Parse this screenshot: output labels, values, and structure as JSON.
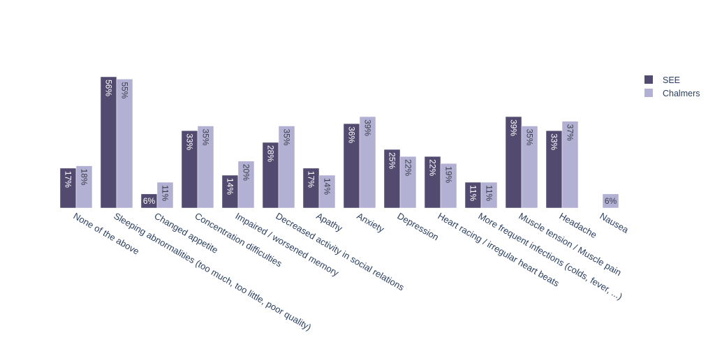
{
  "chart_data": {
    "type": "bar",
    "categories": [
      "None of the above",
      "Sleeping abnormalities (too much, too little, poor quality)",
      "Changed appetite",
      "Concentration difficulties",
      "Impaired / worsened memory",
      "Decreased  activity in social relations",
      "Apathy",
      "Anxiety",
      "Depression",
      "Heart racing / irregular heart beats",
      "More frequent infections (colds, fever, ...)",
      "Muscle tension / Muscle pain",
      "Headache",
      "Nausea"
    ],
    "series": [
      {
        "name": "SEE",
        "color": "#524a6f",
        "values": [
          17,
          56,
          6,
          33,
          14,
          28,
          17,
          36,
          25,
          22,
          11,
          39,
          33,
          0
        ],
        "labels": [
          "17%",
          "56%",
          "6%",
          "33%",
          "14%",
          "28%",
          "17%",
          "36%",
          "25%",
          "22%",
          "11%",
          "39%",
          "33%",
          ""
        ]
      },
      {
        "name": "Chalmers",
        "color": "#b2b0d3",
        "values": [
          18,
          55,
          11,
          35,
          20,
          35,
          14,
          39,
          22,
          19,
          11,
          35,
          37,
          6
        ],
        "labels": [
          "18%",
          "55%",
          "11%",
          "35%",
          "20%",
          "35%",
          "14%",
          "39%",
          "22%",
          "19%",
          "11%",
          "35%",
          "37%",
          "6%"
        ]
      }
    ],
    "ylim": [
      0,
      56
    ],
    "grid": false,
    "legend_position": "top-right"
  }
}
